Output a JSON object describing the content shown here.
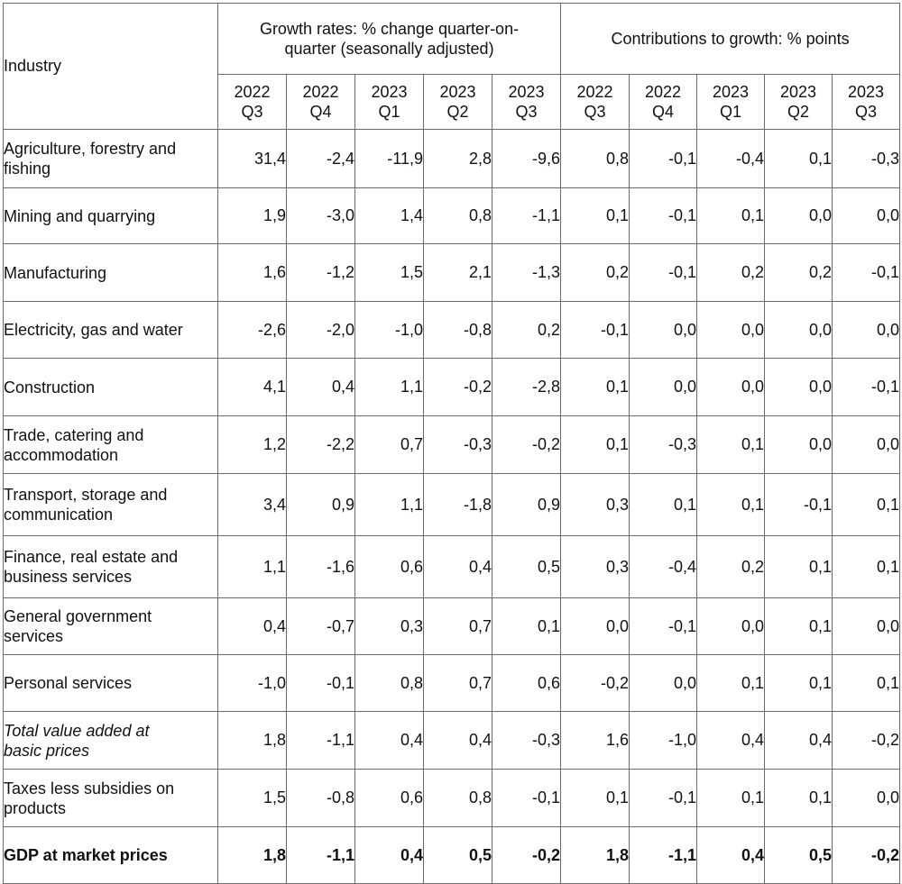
{
  "header": {
    "industry_label": "Industry",
    "growth_label_line1": "Growth rates: % change quarter-on-",
    "growth_label_line2": "quarter (seasonally adjusted)",
    "contrib_label": "Contributions to growth: % points",
    "periods": [
      {
        "year": "2022",
        "quarter": "Q3"
      },
      {
        "year": "2022",
        "quarter": "Q4"
      },
      {
        "year": "2023",
        "quarter": "Q1"
      },
      {
        "year": "2023",
        "quarter": "Q2"
      },
      {
        "year": "2023",
        "quarter": "Q3"
      },
      {
        "year": "2022",
        "quarter": "Q3"
      },
      {
        "year": "2022",
        "quarter": "Q4"
      },
      {
        "year": "2023",
        "quarter": "Q1"
      },
      {
        "year": "2023",
        "quarter": "Q2"
      },
      {
        "year": "2023",
        "quarter": "Q3"
      }
    ]
  },
  "rows": [
    {
      "label1": "Agriculture, forestry and",
      "label2": "fishing",
      "values": [
        "31,4",
        "-2,4",
        "-11,9",
        "2,8",
        "-9,6",
        "0,8",
        "-0,1",
        "-0,4",
        "0,1",
        "-0,3"
      ]
    },
    {
      "label1": "Mining and quarrying",
      "label2": "",
      "values": [
        "1,9",
        "-3,0",
        "1,4",
        "0,8",
        "-1,1",
        "0,1",
        "-0,1",
        "0,1",
        "0,0",
        "0,0"
      ]
    },
    {
      "label1": "Manufacturing",
      "label2": "",
      "values": [
        "1,6",
        "-1,2",
        "1,5",
        "2,1",
        "-1,3",
        "0,2",
        "-0,1",
        "0,2",
        "0,2",
        "-0,1"
      ]
    },
    {
      "label1": "Electricity, gas and water",
      "label2": "",
      "values": [
        "-2,6",
        "-2,0",
        "-1,0",
        "-0,8",
        "0,2",
        "-0,1",
        "0,0",
        "0,0",
        "0,0",
        "0,0"
      ]
    },
    {
      "label1": "Construction",
      "label2": "",
      "values": [
        "4,1",
        "0,4",
        "1,1",
        "-0,2",
        "-2,8",
        "0,1",
        "0,0",
        "0,0",
        "0,0",
        "-0,1"
      ]
    },
    {
      "label1": "Trade, catering and",
      "label2": "accommodation",
      "values": [
        "1,2",
        "-2,2",
        "0,7",
        "-0,3",
        "-0,2",
        "0,1",
        "-0,3",
        "0,1",
        "0,0",
        "0,0"
      ]
    },
    {
      "label1": "Transport, storage and",
      "label2": "communication",
      "values": [
        "3,4",
        "0,9",
        "1,1",
        "-1,8",
        "0,9",
        "0,3",
        "0,1",
        "0,1",
        "-0,1",
        "0,1"
      ]
    },
    {
      "label1": "Finance, real estate and",
      "label2": "business services",
      "values": [
        "1,1",
        "-1,6",
        "0,6",
        "0,4",
        "0,5",
        "0,3",
        "-0,4",
        "0,2",
        "0,1",
        "0,1"
      ]
    },
    {
      "label1": "General government",
      "label2": "services",
      "values": [
        "0,4",
        "-0,7",
        "0,3",
        "0,7",
        "0,1",
        "0,0",
        "-0,1",
        "0,0",
        "0,1",
        "0,0"
      ]
    },
    {
      "label1": "Personal services",
      "label2": "",
      "values": [
        "-1,0",
        "-0,1",
        "0,8",
        "0,7",
        "0,6",
        "-0,2",
        "0,0",
        "0,1",
        "0,1",
        "0,1"
      ]
    },
    {
      "label1": "Total value added at",
      "label2": "basic prices",
      "values": [
        "1,8",
        "-1,1",
        "0,4",
        "0,4",
        "-0,3",
        "1,6",
        "-1,0",
        "0,4",
        "0,4",
        "-0,2"
      ]
    },
    {
      "label1": "Taxes less subsidies on",
      "label2": "products",
      "values": [
        "1,5",
        "-0,8",
        "0,6",
        "0,8",
        "-0,1",
        "0,1",
        "-0,1",
        "0,1",
        "0,1",
        "0,0"
      ]
    },
    {
      "label1": "GDP at market prices",
      "label2": "",
      "values": [
        "1,8",
        "-1,1",
        "0,4",
        "0,5",
        "-0,2",
        "1,8",
        "-1,1",
        "0,4",
        "0,5",
        "-0,2"
      ]
    }
  ]
}
